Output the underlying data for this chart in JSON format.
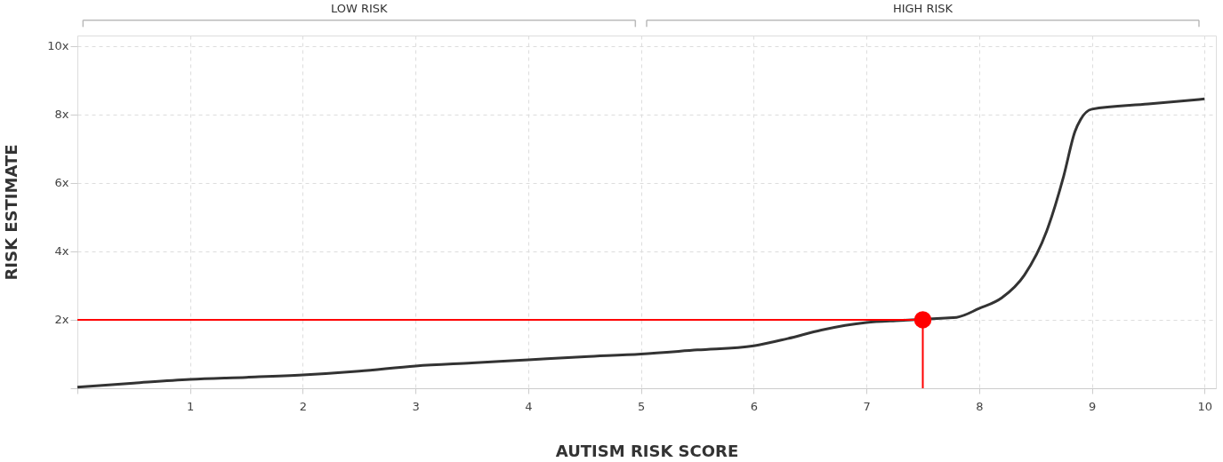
{
  "chart_data": {
    "type": "line",
    "xlabel": "AUTISM RISK SCORE",
    "ylabel": "RISK ESTIMATE",
    "xlim": [
      0,
      10.1
    ],
    "ylim": [
      0,
      10.3
    ],
    "xticks": [
      {
        "value": 0,
        "label": null
      },
      1,
      2,
      3,
      4,
      5,
      6,
      7,
      8,
      9,
      10
    ],
    "yticks": [
      {
        "value": 0,
        "label": null
      },
      {
        "value": 2,
        "label": "2x"
      },
      {
        "value": 4,
        "label": "4x"
      },
      {
        "value": 6,
        "label": "6x"
      },
      {
        "value": 8,
        "label": "8x"
      },
      {
        "value": 10,
        "label": "10x"
      }
    ],
    "grid": true,
    "marker": "none",
    "line_style": "solid",
    "annotations": [
      "LOW RISK",
      "HIGH RISK"
    ],
    "series": [
      {
        "color": "#333333",
        "x": [
          0,
          0.5,
          1,
          1.5,
          2,
          2.5,
          3,
          3.5,
          4,
          4.5,
          5,
          5.5,
          6,
          6.3,
          6.6,
          7,
          7.3,
          7.7,
          7.8,
          8,
          8.2,
          8.4,
          8.6,
          8.75,
          8.85,
          8.9,
          9,
          9.5,
          10
        ],
        "values": [
          0.03,
          0.15,
          0.26,
          0.32,
          0.39,
          0.5,
          0.65,
          0.74,
          0.83,
          0.92,
          1.0,
          1.12,
          1.24,
          1.45,
          1.7,
          1.92,
          1.98,
          2.05,
          2.07,
          2.33,
          2.64,
          3.3,
          4.6,
          6.2,
          7.5,
          7.85,
          8.15,
          8.3,
          8.45
        ]
      },
      {
        "type": "line",
        "color": "#ff0000",
        "x": [
          0,
          7.5,
          7.5
        ],
        "values": [
          2,
          2,
          0
        ]
      },
      {
        "type": "scatter",
        "marker": "circle",
        "color": "#ff0000",
        "x": [
          7.5
        ],
        "values": [
          2
        ]
      }
    ]
  }
}
